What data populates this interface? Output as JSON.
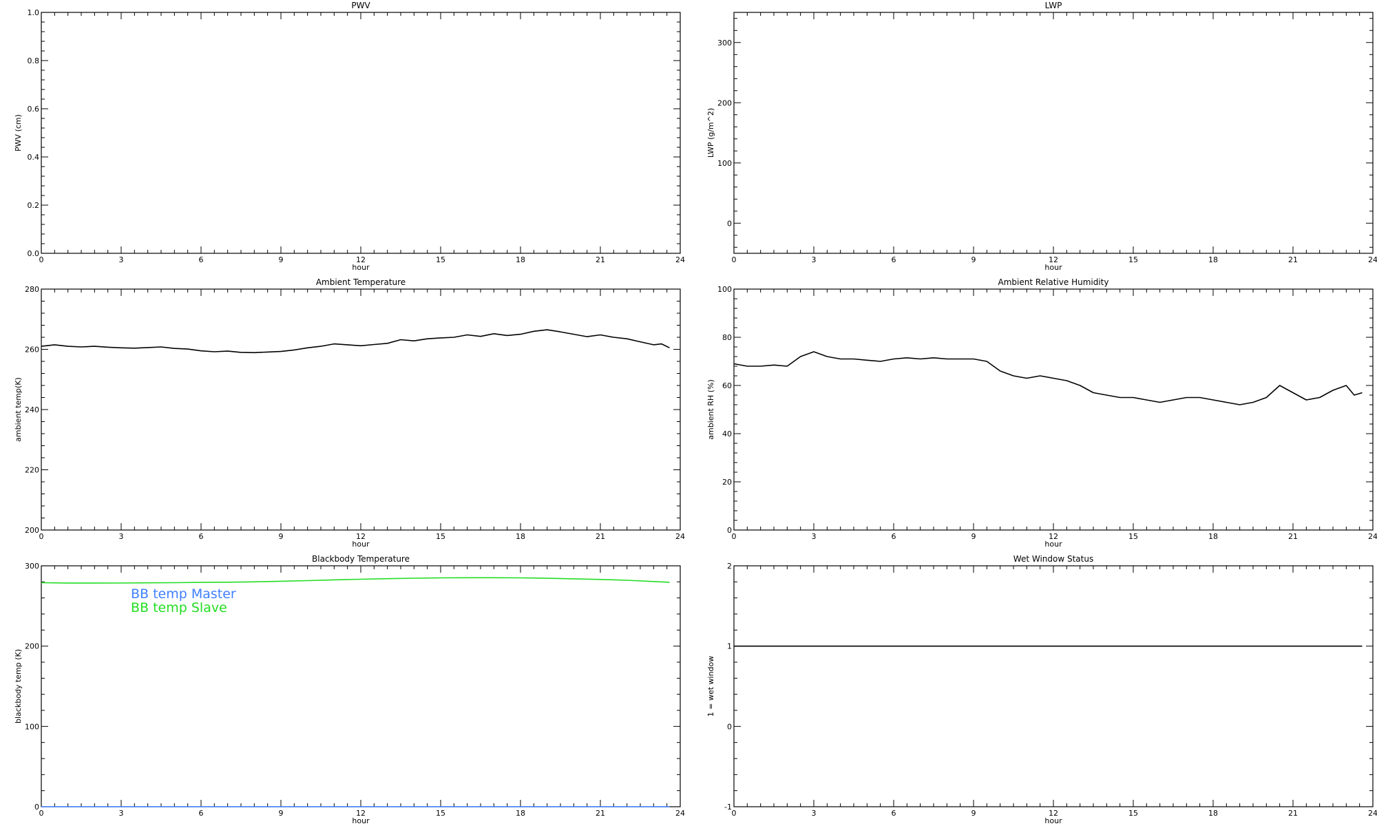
{
  "figure": {
    "background": "#ffffff",
    "axis_color": "#000000"
  },
  "chart_data": [
    {
      "id": "pwv",
      "type": "line",
      "title": "PWV",
      "xlabel": "hour",
      "ylabel": "PWV (cm)",
      "xlim": [
        0,
        24
      ],
      "ylim": [
        0.0,
        1.0
      ],
      "xticks": [
        0,
        3,
        6,
        9,
        12,
        15,
        18,
        21,
        24
      ],
      "yticks": [
        0.0,
        0.2,
        0.4,
        0.6,
        0.8,
        1.0
      ],
      "ytick_labels": [
        "0.0",
        "0.2",
        "0.4",
        "0.6",
        "0.8",
        "1.0"
      ],
      "grid": false,
      "series": []
    },
    {
      "id": "lwp",
      "type": "line",
      "title": "LWP",
      "xlabel": "hour",
      "ylabel": "LWP (g/m^2)",
      "xlim": [
        0,
        24
      ],
      "ylim": [
        -50,
        350
      ],
      "xticks": [
        0,
        3,
        6,
        9,
        12,
        15,
        18,
        21,
        24
      ],
      "yticks": [
        0,
        100,
        200,
        300
      ],
      "ytick_labels": [
        "0",
        "100",
        "200",
        "300"
      ],
      "grid": false,
      "series": []
    },
    {
      "id": "ambient-temp",
      "type": "line",
      "title": "Ambient Temperature",
      "xlabel": "hour",
      "ylabel": "ambient temp(K)",
      "xlim": [
        0,
        24
      ],
      "ylim": [
        200,
        280
      ],
      "xticks": [
        0,
        3,
        6,
        9,
        12,
        15,
        18,
        21,
        24
      ],
      "yticks": [
        200,
        220,
        240,
        260,
        280
      ],
      "ytick_labels": [
        "200",
        "220",
        "240",
        "260",
        "280"
      ],
      "grid": false,
      "series": [
        {
          "color": "#000000",
          "x": [
            0,
            0.5,
            1,
            1.5,
            2,
            2.5,
            3,
            3.5,
            4,
            4.5,
            5,
            5.5,
            6,
            6.5,
            7,
            7.5,
            8,
            8.5,
            9,
            9.5,
            10,
            10.5,
            11,
            11.5,
            12,
            12.5,
            13,
            13.5,
            14,
            14.5,
            15,
            15.5,
            16,
            16.5,
            17,
            17.5,
            18,
            18.5,
            19,
            19.5,
            20,
            20.5,
            21,
            21.5,
            22,
            22.5,
            23,
            23.3,
            23.6
          ],
          "y": [
            261.0,
            261.5,
            261.0,
            260.8,
            261.0,
            260.7,
            260.5,
            260.4,
            260.6,
            260.8,
            260.3,
            260.1,
            259.5,
            259.2,
            259.4,
            259.0,
            258.9,
            259.1,
            259.3,
            259.8,
            260.5,
            261.0,
            261.8,
            261.5,
            261.2,
            261.6,
            262.0,
            263.2,
            262.8,
            263.5,
            263.8,
            264.0,
            264.8,
            264.3,
            265.2,
            264.6,
            265.0,
            266.0,
            266.5,
            265.8,
            265.0,
            264.2,
            264.8,
            264.0,
            263.5,
            262.5,
            261.5,
            261.8,
            260.5
          ]
        }
      ]
    },
    {
      "id": "ambient-rh",
      "type": "line",
      "title": "Ambient Relative Humidity",
      "xlabel": "hour",
      "ylabel": "ambient RH (%)",
      "xlim": [
        0,
        24
      ],
      "ylim": [
        0,
        100
      ],
      "xticks": [
        0,
        3,
        6,
        9,
        12,
        15,
        18,
        21,
        24
      ],
      "yticks": [
        0,
        20,
        40,
        60,
        80,
        100
      ],
      "ytick_labels": [
        "0",
        "20",
        "40",
        "60",
        "80",
        "100"
      ],
      "grid": false,
      "series": [
        {
          "color": "#000000",
          "x": [
            0,
            0.5,
            1,
            1.5,
            2,
            2.5,
            3,
            3.5,
            4,
            4.5,
            5,
            5.5,
            6,
            6.5,
            7,
            7.5,
            8,
            8.5,
            9,
            9.5,
            10,
            10.5,
            11,
            11.5,
            12,
            12.5,
            13,
            13.5,
            14,
            14.5,
            15,
            15.5,
            16,
            16.5,
            17,
            17.5,
            18,
            18.5,
            19,
            19.5,
            20,
            20.5,
            21,
            21.5,
            22,
            22.5,
            23,
            23.3,
            23.6
          ],
          "y": [
            69,
            68,
            68,
            68.5,
            68,
            72,
            74,
            72,
            71,
            71,
            70.5,
            70,
            71,
            71.5,
            71,
            71.5,
            71,
            71,
            71,
            70,
            66,
            64,
            63,
            64,
            63,
            62,
            60,
            57,
            56,
            55,
            55,
            54,
            53,
            54,
            55,
            55,
            54,
            53,
            52,
            53,
            55,
            60,
            57,
            54,
            55,
            58,
            60,
            56,
            57
          ]
        }
      ]
    },
    {
      "id": "blackbody-temp",
      "type": "line",
      "title": "Blackbody Temperature",
      "xlabel": "hour",
      "ylabel": "blackbody temp (K)",
      "xlim": [
        0,
        24
      ],
      "ylim": [
        0,
        300
      ],
      "xticks": [
        0,
        3,
        6,
        9,
        12,
        15,
        18,
        21,
        24
      ],
      "yticks": [
        0,
        100,
        200,
        300
      ],
      "ytick_labels": [
        "0",
        "100",
        "200",
        "300"
      ],
      "grid": false,
      "legend_position": "top-left",
      "series": [
        {
          "name": "BB temp Master",
          "color": "#3f7fff",
          "x": [
            0,
            3,
            6,
            9,
            12,
            15,
            18,
            21,
            23.6
          ],
          "y": [
            0,
            0,
            0,
            0,
            0,
            0,
            0,
            0,
            0
          ]
        },
        {
          "name": "BB temp Slave",
          "color": "#22dd22",
          "x": [
            0,
            1,
            2,
            3,
            4,
            5,
            6,
            7,
            8,
            9,
            10,
            11,
            12,
            13,
            14,
            15,
            16,
            17,
            18,
            19,
            20,
            21,
            22,
            23,
            23.6
          ],
          "y": [
            279,
            278.5,
            278.5,
            278.6,
            278.8,
            279,
            279.3,
            279.6,
            280,
            280.8,
            281.6,
            282.5,
            283.3,
            284,
            284.6,
            285,
            285.2,
            285.2,
            285,
            284.5,
            283.8,
            283,
            282,
            280.5,
            279.5
          ]
        }
      ]
    },
    {
      "id": "wet-window",
      "type": "line",
      "title": "Wet Window Status",
      "xlabel": "hour",
      "ylabel": "1 = wet window",
      "xlim": [
        0,
        24
      ],
      "ylim": [
        -1,
        2
      ],
      "xticks": [
        0,
        3,
        6,
        9,
        12,
        15,
        18,
        21,
        24
      ],
      "yticks": [
        -1,
        0,
        1,
        2
      ],
      "ytick_labels": [
        "-1",
        "0",
        "1",
        "2"
      ],
      "grid": false,
      "series": [
        {
          "color": "#000000",
          "x": [
            0,
            23.6
          ],
          "y": [
            1,
            1
          ]
        }
      ]
    }
  ]
}
